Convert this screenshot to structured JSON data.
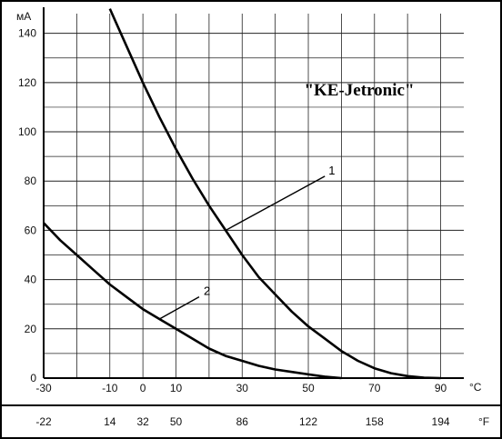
{
  "chart_data": {
    "type": "line",
    "title": "\"KE-Jetronic\"",
    "ylabel": "мА",
    "xlabel": "°C",
    "x2label": "°F",
    "ylim": [
      0,
      148
    ],
    "xlim": [
      -30,
      97
    ],
    "y_ticks": [
      0,
      20,
      40,
      60,
      80,
      100,
      120,
      140
    ],
    "x_ticks": [
      {
        "value": -30,
        "label": "-30"
      },
      {
        "value": -10,
        "label": "-10"
      },
      {
        "value": 0,
        "label": "0"
      },
      {
        "value": 10,
        "label": "10"
      },
      {
        "value": 30,
        "label": "30"
      },
      {
        "value": 50,
        "label": "50"
      },
      {
        "value": 70,
        "label": "70"
      },
      {
        "value": 90,
        "label": "90"
      }
    ],
    "x2_ticks": [
      {
        "value": -30,
        "label": "-22"
      },
      {
        "value": -10,
        "label": "14"
      },
      {
        "value": 0,
        "label": "32"
      },
      {
        "value": 10,
        "label": "50"
      },
      {
        "value": 30,
        "label": "86"
      },
      {
        "value": 50,
        "label": "122"
      },
      {
        "value": 70,
        "label": "158"
      },
      {
        "value": 90,
        "label": "194"
      }
    ],
    "grid": true,
    "series": [
      {
        "name": "1",
        "x": [
          -10,
          -5,
          0,
          5,
          10,
          15,
          20,
          25,
          30,
          35,
          40,
          45,
          50,
          55,
          60,
          65,
          70,
          75,
          80,
          85,
          90
        ],
        "y": [
          150,
          135,
          120,
          106,
          93,
          81,
          70,
          60,
          50,
          41,
          34,
          27,
          21,
          16,
          11,
          7,
          4,
          2,
          0.8,
          0.2,
          0
        ]
      },
      {
        "name": "2",
        "x": [
          -30,
          -25,
          -20,
          -15,
          -10,
          -5,
          0,
          5,
          10,
          15,
          20,
          25,
          30,
          35,
          40,
          45,
          50,
          55,
          60
        ],
        "y": [
          63,
          56,
          50,
          44,
          38,
          33,
          28,
          24,
          20,
          16,
          12,
          9,
          7,
          5,
          3.5,
          2.5,
          1.5,
          0.6,
          0
        ]
      }
    ]
  }
}
